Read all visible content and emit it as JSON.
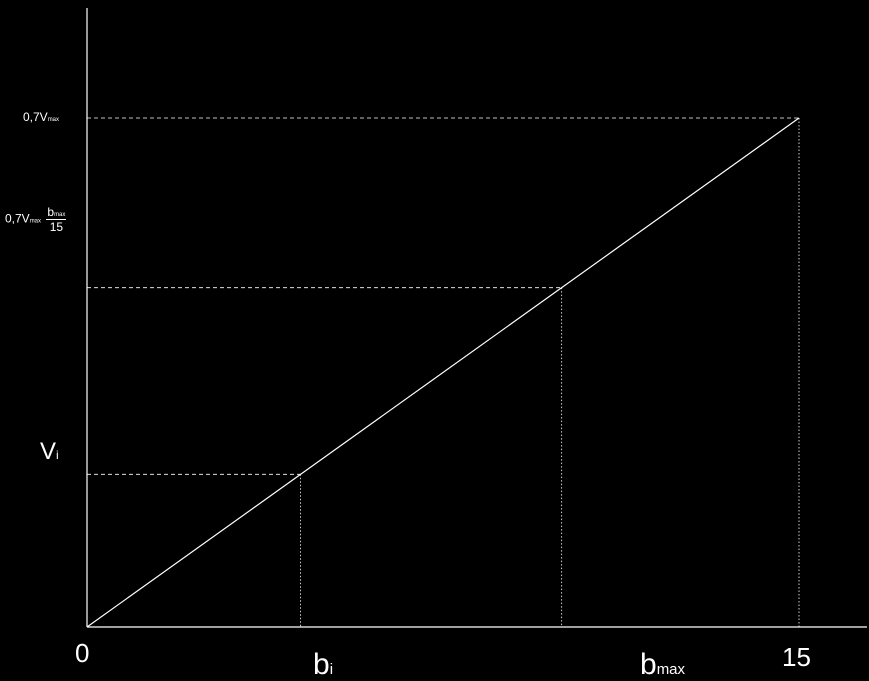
{
  "colors": {
    "background": "#000000",
    "foreground": "#ffffff"
  },
  "chart_data": {
    "type": "line",
    "title": "",
    "xlabel": "",
    "ylabel": "",
    "grid": false,
    "xlim": [
      0,
      15
    ],
    "ylim_fraction_of_vmax": [
      0,
      0.7
    ],
    "series": [
      {
        "x": [
          0,
          15
        ],
        "y_fraction_of_vmax": [
          0,
          0.7
        ]
      }
    ],
    "x_ticks": [
      {
        "value": 0,
        "label": "0"
      },
      {
        "value": 4.5,
        "label": "b",
        "subscript": "i"
      },
      {
        "value": 10,
        "label": "b",
        "subscript": "max"
      },
      {
        "value": 15,
        "label": "15"
      }
    ],
    "reference_points": [
      {
        "x": 4.5,
        "y_label": "V",
        "y_label_sub": "i"
      },
      {
        "x": 10,
        "y_label": "0,7V",
        "y_label_sub": "max",
        "fraction_num": "b",
        "fraction_num_sub": "max",
        "fraction_den": "15"
      },
      {
        "x": 15,
        "y_label": "0,7V",
        "y_label_sub": "max"
      }
    ]
  }
}
